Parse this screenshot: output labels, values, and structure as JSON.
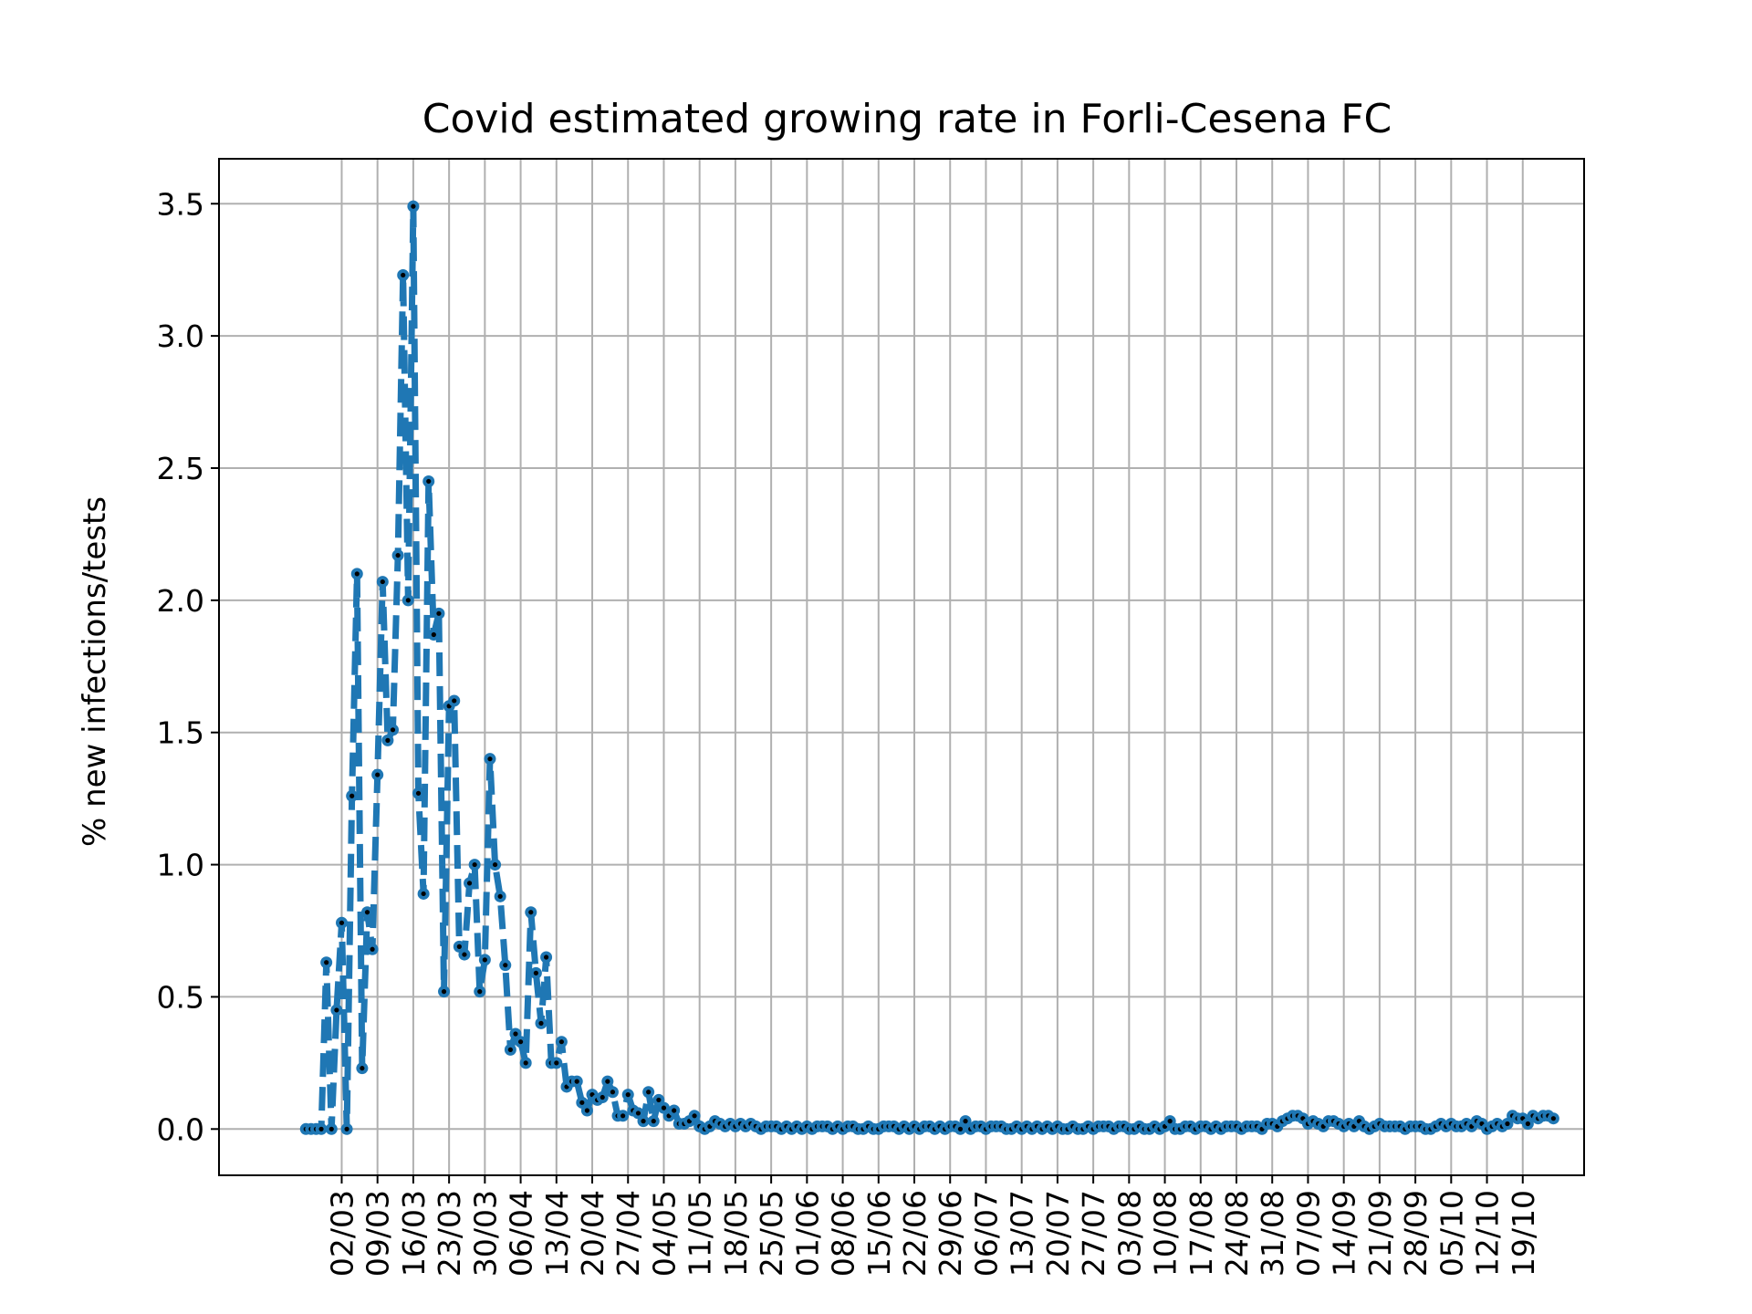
{
  "chart_data": {
    "type": "line",
    "title": "Covid estimated growing rate in Forli-Cesena FC",
    "xlabel": "",
    "ylabel": "% new infections/tests",
    "ylim": [
      -0.175,
      3.67
    ],
    "xlim": [
      "2020-02-07",
      "2020-10-31"
    ],
    "grid": true,
    "legend": "none",
    "yticks": [
      "0.0",
      "0.5",
      "1.0",
      "1.5",
      "2.0",
      "2.5",
      "3.0",
      "3.5"
    ],
    "xticks": [
      "02/03",
      "09/03",
      "16/03",
      "23/03",
      "30/03",
      "06/04",
      "13/04",
      "20/04",
      "27/04",
      "04/05",
      "11/05",
      "18/05",
      "25/05",
      "01/06",
      "08/06",
      "15/06",
      "22/06",
      "29/06",
      "06/07",
      "13/07",
      "20/07",
      "27/07",
      "03/08",
      "10/08",
      "17/08",
      "24/08",
      "31/08",
      "07/09",
      "14/09",
      "21/09",
      "28/09",
      "05/10",
      "12/10",
      "19/10"
    ],
    "xtick_dates": [
      "2020-03-02",
      "2020-03-09",
      "2020-03-16",
      "2020-03-23",
      "2020-03-30",
      "2020-04-06",
      "2020-04-13",
      "2020-04-20",
      "2020-04-27",
      "2020-05-04",
      "2020-05-11",
      "2020-05-18",
      "2020-05-25",
      "2020-06-01",
      "2020-06-08",
      "2020-06-15",
      "2020-06-22",
      "2020-06-29",
      "2020-07-06",
      "2020-07-13",
      "2020-07-20",
      "2020-07-27",
      "2020-08-03",
      "2020-08-10",
      "2020-08-17",
      "2020-08-24",
      "2020-08-31",
      "2020-09-07",
      "2020-09-14",
      "2020-09-21",
      "2020-09-28",
      "2020-10-05",
      "2020-10-12",
      "2020-10-19"
    ],
    "x_start": "2020-02-24",
    "series": [
      {
        "color": "#1f77b4",
        "marker_color": "#000000",
        "values": [
          0,
          0,
          0,
          0,
          0.63,
          0,
          0.45,
          0.78,
          0,
          1.26,
          2.1,
          0.23,
          0.82,
          0.68,
          1.34,
          2.07,
          1.47,
          1.51,
          2.17,
          3.23,
          2.0,
          3.49,
          1.27,
          0.89,
          2.45,
          1.87,
          1.95,
          0.52,
          1.6,
          1.62,
          0.69,
          0.66,
          0.93,
          1.0,
          0.52,
          0.64,
          1.4,
          1.0,
          0.88,
          0.62,
          0.3,
          0.36,
          0.33,
          0.25,
          0.82,
          0.59,
          0.4,
          0.65,
          0.25,
          0.25,
          0.33,
          0.16,
          0.18,
          0.18,
          0.1,
          0.07,
          0.13,
          0.11,
          0.12,
          0.18,
          0.14,
          0.05,
          0.05,
          0.13,
          0.07,
          0.06,
          0.03,
          0.14,
          0.03,
          0.11,
          0.08,
          0.05,
          0.07,
          0.02,
          0.02,
          0.03,
          0.05,
          0.01,
          0.0,
          0.01,
          0.03,
          0.02,
          0.01,
          0.02,
          0.01,
          0.02,
          0.01,
          0.02,
          0.01,
          0.0,
          0.01,
          0.01,
          0.01,
          0.0,
          0.01,
          0.0,
          0.01,
          0.0,
          0.01,
          0.0,
          0.01,
          0.01,
          0.01,
          0.0,
          0.01,
          0.0,
          0.01,
          0.01,
          0.0,
          0.0,
          0.01,
          0.0,
          0.0,
          0.01,
          0.01,
          0.01,
          0.0,
          0.01,
          0.0,
          0.01,
          0.0,
          0.01,
          0.01,
          0.0,
          0.01,
          0.0,
          0.01,
          0.01,
          0.0,
          0.03,
          0.0,
          0.01,
          0.01,
          0.0,
          0.01,
          0.01,
          0.01,
          0.0,
          0.0,
          0.01,
          0.0,
          0.01,
          0.0,
          0.01,
          0.0,
          0.01,
          0.0,
          0.01,
          0.0,
          0.0,
          0.01,
          0.0,
          0.0,
          0.01,
          0.0,
          0.01,
          0.01,
          0.01,
          0.0,
          0.01,
          0.01,
          0.0,
          0.0,
          0.01,
          0.0,
          0.0,
          0.01,
          0.0,
          0.01,
          0.03,
          0.0,
          0.0,
          0.01,
          0.01,
          0.0,
          0.01,
          0.01,
          0.0,
          0.01,
          0.0,
          0.01,
          0.01,
          0.01,
          0.0,
          0.01,
          0.01,
          0.01,
          0.0,
          0.02,
          0.02,
          0.01,
          0.03,
          0.04,
          0.05,
          0.05,
          0.04,
          0.02,
          0.03,
          0.02,
          0.01,
          0.03,
          0.03,
          0.02,
          0.01,
          0.02,
          0.01,
          0.03,
          0.01,
          0.0,
          0.01,
          0.02,
          0.01,
          0.01,
          0.01,
          0.01,
          0.0,
          0.01,
          0.01,
          0.01,
          0.0,
          0.0,
          0.01,
          0.02,
          0.01,
          0.02,
          0.01,
          0.01,
          0.02,
          0.01,
          0.03,
          0.02,
          0.0,
          0.01,
          0.02,
          0.01,
          0.02,
          0.05,
          0.04,
          0.04,
          0.02,
          0.05,
          0.04,
          0.05,
          0.05,
          0.04
        ]
      }
    ]
  }
}
